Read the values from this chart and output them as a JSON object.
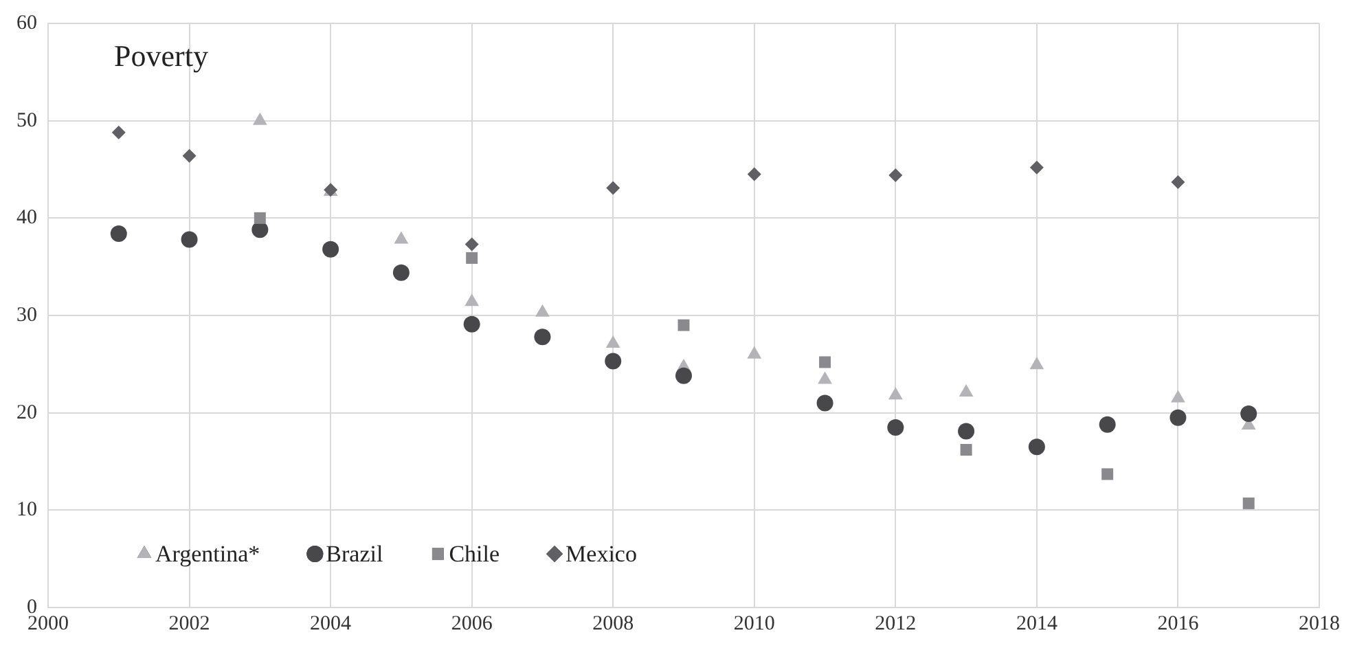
{
  "chart_data": {
    "type": "scatter",
    "title": "Poverty",
    "xlim": [
      2000,
      2018
    ],
    "xticks": [
      2000,
      2002,
      2004,
      2006,
      2008,
      2010,
      2012,
      2014,
      2016,
      2018
    ],
    "ylim": [
      0,
      60
    ],
    "yticks": [
      0,
      10,
      20,
      30,
      40,
      50,
      60
    ],
    "grid": true,
    "legend": "bottom left",
    "series": [
      {
        "name": "Argentina*",
        "color": "#b4b4b8",
        "marker": "triangle",
        "x": [
          2003,
          2004,
          2005,
          2006,
          2007,
          2008,
          2009,
          2010,
          2011,
          2012,
          2013,
          2014,
          2016,
          2017
        ],
        "values": [
          50,
          42.7,
          37.8,
          31.4,
          30.3,
          27.1,
          24.7,
          26,
          23.4,
          21.8,
          22.1,
          24.9,
          21.5,
          18.7
        ]
      },
      {
        "name": "Brazil",
        "color": "#48484a",
        "marker": "circle",
        "x": [
          2001,
          2002,
          2003,
          2004,
          2005,
          2006,
          2007,
          2008,
          2009,
          2011,
          2012,
          2013,
          2014,
          2015,
          2016,
          2017
        ],
        "values": [
          38.4,
          37.8,
          38.8,
          36.8,
          34.4,
          29.1,
          27.8,
          25.3,
          23.8,
          21,
          18.5,
          18.1,
          16.5,
          18.8,
          19.5,
          19.9
        ]
      },
      {
        "name": "Chile",
        "color": "#8a8a8e",
        "marker": "square",
        "x": [
          2003,
          2006,
          2009,
          2011,
          2013,
          2015,
          2017
        ],
        "values": [
          40,
          35.9,
          29,
          25.2,
          16.2,
          13.7,
          10.7
        ]
      },
      {
        "name": "Mexico",
        "color": "#606064",
        "marker": "diamond",
        "x": [
          2001,
          2002,
          2004,
          2006,
          2008,
          2010,
          2012,
          2014,
          2016
        ],
        "values": [
          48.8,
          46.4,
          42.9,
          37.3,
          43.1,
          44.5,
          44.4,
          45.2,
          43.7
        ]
      }
    ]
  }
}
